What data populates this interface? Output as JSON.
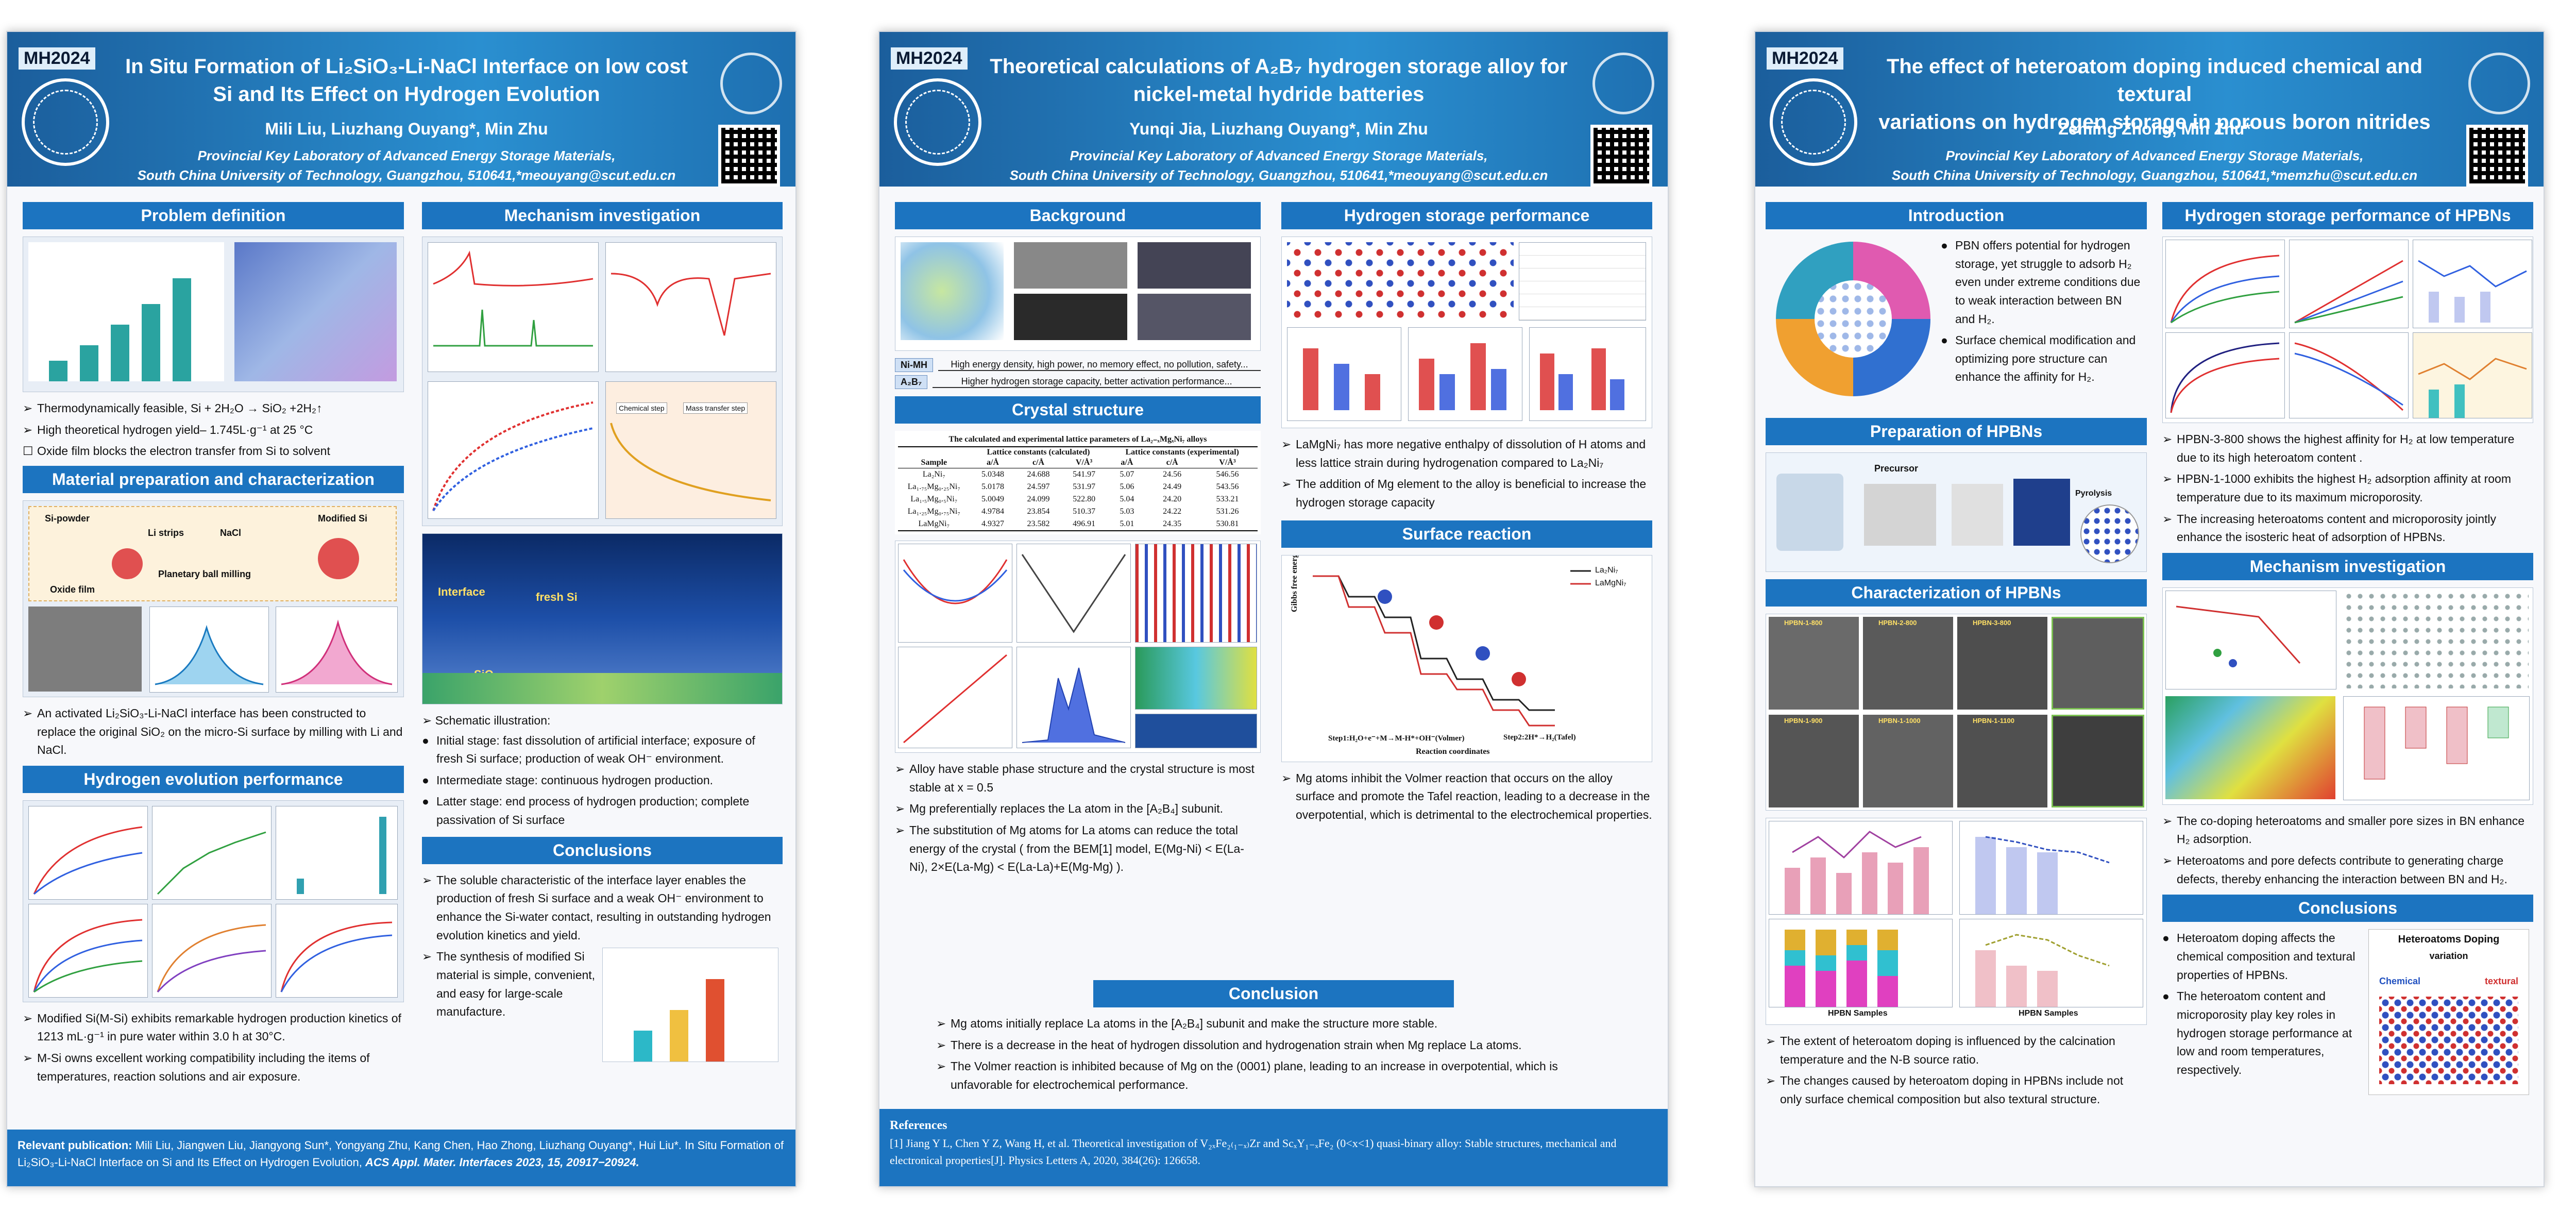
{
  "poster1": {
    "conference": "MH2024",
    "title_line1": "In Situ Formation of Li₂SiO₃-Li-NaCl Interface on low cost",
    "title_line2": "Si and Its Effect on Hydrogen Evolution",
    "authors": "Mili Liu, Liuzhang Ouyang*, Min Zhu",
    "affiliation_line1": "Provincial Key Laboratory of Advanced Energy Storage Materials,",
    "affiliation_line2": "South China University of Technology, Guangzhou, 510641,*meouyang@scut.edu.cn",
    "sections": {
      "problem": "Problem definition",
      "mechanism": "Mechanism investigation",
      "material": "Material preparation and characterization",
      "hydrogen": "Hydrogen evolution performance",
      "conclusions": "Conclusions"
    },
    "problem_bullets": [
      "Thermodynamically feasible, Si + 2H₂O → SiO₂ +2H₂↑",
      "High theoretical hydrogen yield– 1.745L·g⁻¹ at 25 °C",
      "Oxide film blocks the electron transfer from Si to solvent"
    ],
    "material_text": "An activated Li₂SiO₃-Li-NaCl interface has been constructed to replace the original SiO₂ on the micro-Si surface by milling with Li and NaCl.",
    "material_labels": [
      "Si-powder",
      "Li strips",
      "NaCl",
      "Modified Si",
      "Planetary ball milling",
      "Oxide film"
    ],
    "hydrogen_bullets": [
      "Modified Si(M-Si) exhibits remarkable hydrogen production kinetics of 1213 mL·g⁻¹ in pure water within 3.0 h at 30°C.",
      "M-Si owns excellent working compatibility including the items of temperatures, reaction solutions and air exposure."
    ],
    "mechanism_intro": "Schematic illustration:",
    "mechanism_bullets": [
      "Initial stage: fast dissolution of artificial interface; exposure of fresh Si surface; production of weak OH⁻ environment.",
      "Intermediate stage: continuous hydrogen production.",
      "Latter stage: end process of hydrogen production; complete passivation of Si surface"
    ],
    "mechanism_fig_labels": [
      "Interface",
      "fresh Si",
      "SiO₂"
    ],
    "stage_labels": [
      "Chemical step",
      "Mass transfer step"
    ],
    "conclusions": [
      "The soluble characteristic of the interface layer enables the production of fresh Si surface and a weak OH⁻ environment to enhance the Si-water contact, resulting in outstanding hydrogen evolution kinetics and yield.",
      "The synthesis of modified Si material is simple, convenient, and easy for large-scale manufacture."
    ],
    "publication_label": "Relevant publication:",
    "publication_text": "Mili Liu, Jiangwen Liu, Jiangyong Sun*, Yongyang Zhu, Kang Chen, Hao Zhong, Liuzhang Ouyang*, Hui Liu*. In Situ Formation of Li₂SiO₃-Li-NaCl Interface on Si and Its Effect on Hydrogen Evolution,",
    "publication_journal": "ACS Appl. Mater. Interfaces 2023, 15, 20917−20924."
  },
  "poster2": {
    "conference": "MH2024",
    "title_line1": "Theoretical calculations of A₂B₇ hydrogen storage alloy for",
    "title_line2": "nickel-metal hydride batteries",
    "authors": "Yunqi Jia, Liuzhang Ouyang*, Min Zhu",
    "affiliation_line1": "Provincial Key Laboratory of Advanced Energy Storage Materials,",
    "affiliation_line2": "South China University of Technology, Guangzhou, 510641,*meouyang@scut.edu.cn",
    "sections": {
      "background": "Background",
      "hydrogen": "Hydrogen storage performance",
      "crystal": "Crystal structure",
      "surface": "Surface reaction",
      "conclusion": "Conclusion"
    },
    "background_rows": [
      {
        "tag": "Ni-MH",
        "text": "High energy density, high power, no memory effect, no pollution, safety..."
      },
      {
        "tag": "A₂B₇",
        "text": "Higher hydrogen storage capacity, better activation performance..."
      }
    ],
    "table_caption": "The calculated and experimental lattice parameters of La₂₋ₓMgₓNi₇ alloys",
    "table_headers": [
      "Sample",
      "a/Å",
      "c/Å",
      "V/Å³",
      "a/Å",
      "c/Å",
      "V/Å³"
    ],
    "table_group_headers": [
      "Lattice constants (calculated)",
      "Lattice constants (experimental)"
    ],
    "table_rows": [
      [
        "La₂Ni₇",
        "5.0348",
        "24.688",
        "541.97",
        "5.07",
        "24.56",
        "546.56"
      ],
      [
        "La₁.₇₅Mg₀.₂₅Ni₇",
        "5.0178",
        "24.597",
        "531.97",
        "5.06",
        "24.49",
        "543.56"
      ],
      [
        "La₁.₅Mg₀.₅Ni₇",
        "5.0049",
        "24.099",
        "522.80",
        "5.04",
        "24.20",
        "533.21"
      ],
      [
        "La₁.₂₅Mg₀.₇₅Ni₇",
        "4.9784",
        "23.854",
        "510.37",
        "5.03",
        "24.22",
        "531.26"
      ],
      [
        "LaMgNi₇",
        "4.9327",
        "23.582",
        "496.91",
        "5.01",
        "24.35",
        "530.81"
      ]
    ],
    "crystal_bullets": [
      "Alloy have stable phase structure and the crystal structure is most stable at x = 0.5",
      "Mg preferentially replaces the La atom in the [A₂B₄] subunit.",
      "The substitution of Mg atoms for La atoms can reduce the total energy of the crystal ( from the BEM[1] model, E(Mg-Ni) < E(La-Ni), 2×E(La-Mg) < E(La-La)+E(Mg-Mg) )."
    ],
    "hydrogen_bullets": [
      "LaMgNi₇ has more negative enthalpy of dissolution of H atoms and less lattice strain during hydrogenation compared to La₂Ni₇",
      "The addition of Mg element to the alloy is beneficial to increase the hydrogen storage capacity"
    ],
    "surface_labels": {
      "ylabel": "Gibbs free energy (eV)",
      "xlabel": "Reaction coordinates",
      "legend": [
        "La₂Ni₇",
        "LaMgNi₇"
      ],
      "step1": "Step1:H₂O+e⁻+M→M-H*+OH⁻(Volmer)",
      "step2": "Step2:2H*→H₂(Tafel)"
    },
    "surface_text": "Mg atoms inhibit the Volmer reaction that occurs on the alloy surface and promote the Tafel reaction, leading to a decrease in the overpotential, which is detrimental to the electrochemical properties.",
    "conclusion_bullets": [
      "Mg atoms initially replace La atoms in the [A₂B₄] subunit and make the structure more stable.",
      "There is a decrease in the heat of hydrogen dissolution and hydrogenation strain when Mg replace La atoms.",
      "The Volmer reaction is inhibited because of Mg on the (0001) plane, leading to an increase in overpotential, which is unfavorable for electrochemical performance."
    ],
    "references_title": "References",
    "reference": "[1] Jiang Y L, Chen Y Z, Wang H, et al. Theoretical investigation of V₂ₓFe₂₍₁₋ₓ₎Zr and ScₓY₁₋ₓFe₂ (0<x<1) quasi-binary alloy: Stable structures, mechanical and electronical properties[J]. Physics Letters A, 2020, 384(26): 126658."
  },
  "poster3": {
    "conference": "MH2024",
    "title_line1": "The effect of heteroatom doping induced chemical and textural",
    "title_line2": "variations on hydrogen storage in porous boron nitrides",
    "authors": "Zeming Zhong, Min Zhu*",
    "affiliation_line1": "Provincial Key Laboratory of Advanced Energy Storage Materials,",
    "affiliation_line2": "South China University of Technology, Guangzhou, 510641,*memzhu@scut.edu.cn",
    "sections": {
      "introduction": "Introduction",
      "hsp": "Hydrogen storage performance of HPBNs",
      "preparation": "Preparation of HPBNs",
      "characterization": "Characterization of HPBNs",
      "mechanism": "Mechanism investigation",
      "conclusions": "Conclusions"
    },
    "intro_bullets": [
      "PBN offers potential for hydrogen storage, yet struggle to adsorb H₂ even under extreme conditions due to weak interaction between BN and H₂.",
      "Surface chemical modification and optimizing pore structure can enhance the affinity for H₂."
    ],
    "hsp_bullets": [
      "HPBN-3-800 shows the highest affinity for H₂ at low temperature due to its high heteroatom content .",
      "HPBN-1-1000 exhibits the highest H₂ adsorption affinity at room temperature due to its maximum microporosity.",
      "The increasing heteroatoms content and microporosity jointly enhance the isosteric heat of adsorption of HPBNs."
    ],
    "prep_labels": [
      "Precursor",
      "Pyrolysis"
    ],
    "char_sample_labels": [
      "HPBN-1-800",
      "HPBN-2-800",
      "HPBN-3-800",
      "HPBN-1-900",
      "HPBN-1-1000",
      "HPBN-1-1100"
    ],
    "char_bullets": [
      "The extent of heteroatom doping is influenced by the calcination temperature and the N-B source ratio.",
      "The changes caused by heteroatom doping in HPBNs include not only surface chemical composition but also textural structure."
    ],
    "char_xlabel": "HPBN Samples",
    "mechanism_bullets": [
      "The co-doping heteroatoms and smaller pore sizes in BN enhance H₂ adsorption.",
      "Heteroatoms and pore defects contribute to generating charge defects, thereby enhancing the interaction between BN and H₂."
    ],
    "conclusion_bullets": [
      "Heteroatom doping affects the chemical composition and textural properties of HPBNs.",
      "The heteroatom content and microporosity play key roles in hydrogen storage performance at low and room temperatures, respectively."
    ],
    "conclusion_fig": {
      "title": "Heteroatoms Doping",
      "variation": "variation",
      "chemical": "Chemical",
      "textural": "textural"
    }
  }
}
